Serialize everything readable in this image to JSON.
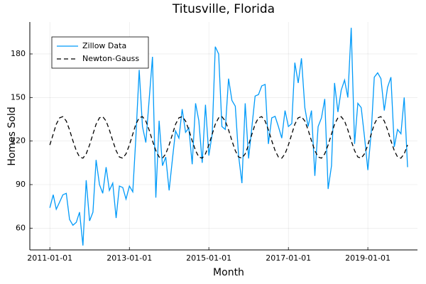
{
  "chart_data": {
    "type": "line",
    "title": "Titusville, Florida",
    "x_label": "Month",
    "y_label": "Homes Sold",
    "x": [
      "2011-01-01",
      "2011-02-01",
      "2011-03-01",
      "2011-04-01",
      "2011-05-01",
      "2011-06-01",
      "2011-07-01",
      "2011-08-01",
      "2011-09-01",
      "2011-10-01",
      "2011-11-01",
      "2011-12-01",
      "2012-01-01",
      "2012-02-01",
      "2012-03-01",
      "2012-04-01",
      "2012-05-01",
      "2012-06-01",
      "2012-07-01",
      "2012-08-01",
      "2012-09-01",
      "2012-10-01",
      "2012-11-01",
      "2012-12-01",
      "2013-01-01",
      "2013-02-01",
      "2013-03-01",
      "2013-04-01",
      "2013-05-01",
      "2013-06-01",
      "2013-07-01",
      "2013-08-01",
      "2013-09-01",
      "2013-10-01",
      "2013-11-01",
      "2013-12-01",
      "2014-01-01",
      "2014-02-01",
      "2014-03-01",
      "2014-04-01",
      "2014-05-01",
      "2014-06-01",
      "2014-07-01",
      "2014-08-01",
      "2014-09-01",
      "2014-10-01",
      "2014-11-01",
      "2014-12-01",
      "2015-01-01",
      "2015-02-01",
      "2015-03-01",
      "2015-04-01",
      "2015-05-01",
      "2015-06-01",
      "2015-07-01",
      "2015-08-01",
      "2015-09-01",
      "2015-10-01",
      "2015-11-01",
      "2015-12-01",
      "2016-01-01",
      "2016-02-01",
      "2016-03-01",
      "2016-04-01",
      "2016-05-01",
      "2016-06-01",
      "2016-07-01",
      "2016-08-01",
      "2016-09-01",
      "2016-10-01",
      "2016-11-01",
      "2016-12-01",
      "2017-01-01",
      "2017-02-01",
      "2017-03-01",
      "2017-04-01",
      "2017-05-01",
      "2017-06-01",
      "2017-07-01",
      "2017-08-01",
      "2017-09-01",
      "2017-10-01",
      "2017-11-01",
      "2017-12-01",
      "2018-01-01",
      "2018-02-01",
      "2018-03-01",
      "2018-04-01",
      "2018-05-01",
      "2018-06-01",
      "2018-07-01",
      "2018-08-01",
      "2018-09-01",
      "2018-10-01",
      "2018-11-01",
      "2018-12-01",
      "2019-01-01",
      "2019-02-01",
      "2019-03-01",
      "2019-04-01",
      "2019-05-01",
      "2019-06-01",
      "2019-07-01",
      "2019-08-01",
      "2019-09-01",
      "2019-10-01",
      "2019-11-01",
      "2019-12-01",
      "2020-01-01"
    ],
    "series": [
      {
        "name": "Zillow Data",
        "color": "#009af9",
        "dash": "solid",
        "values": [
          74,
          83,
          73,
          78,
          83,
          84,
          66,
          62,
          64,
          71,
          48,
          93,
          65,
          71,
          107,
          90,
          84,
          102,
          86,
          91,
          67,
          89,
          88,
          80,
          89,
          85,
          122,
          169,
          130,
          119,
          148,
          178,
          81,
          134,
          103,
          109,
          86,
          108,
          127,
          122,
          142,
          126,
          129,
          104,
          146,
          134,
          105,
          145,
          110,
          125,
          185,
          180,
          130,
          128,
          163,
          148,
          144,
          110,
          91,
          146,
          108,
          130,
          151,
          152,
          158,
          159,
          118,
          136,
          137,
          130,
          122,
          141,
          130,
          132,
          174,
          160,
          177,
          143,
          130,
          141,
          96,
          130,
          136,
          149,
          87,
          103,
          160,
          140,
          155,
          162,
          150,
          198,
          118,
          146,
          143,
          123,
          100,
          126,
          164,
          167,
          163,
          141,
          157,
          164,
          116,
          128,
          125,
          150,
          102
        ]
      },
      {
        "name": "Newton-Gauss",
        "color": "#000000",
        "dash": "dashed",
        "values": [
          117.3,
          124.8,
          131.6,
          136.0,
          136.8,
          133.8,
          127.7,
          120.2,
          113.4,
          109.0,
          108.2,
          111.2,
          117.3,
          124.8,
          131.6,
          136.0,
          136.8,
          133.8,
          127.7,
          120.2,
          113.4,
          109.0,
          108.2,
          111.2,
          117.3,
          124.8,
          131.6,
          136.0,
          136.8,
          133.8,
          127.7,
          120.2,
          113.4,
          109.0,
          108.2,
          111.2,
          117.3,
          124.8,
          131.6,
          136.0,
          136.8,
          133.8,
          127.7,
          120.2,
          113.4,
          109.0,
          108.2,
          111.2,
          117.3,
          124.8,
          131.6,
          136.0,
          136.8,
          133.8,
          127.7,
          120.2,
          113.4,
          109.0,
          108.2,
          111.2,
          117.3,
          124.8,
          131.6,
          136.0,
          136.8,
          133.8,
          127.7,
          120.2,
          113.4,
          109.0,
          108.2,
          111.2,
          117.3,
          124.8,
          131.6,
          136.0,
          136.8,
          133.8,
          127.7,
          120.2,
          113.4,
          109.0,
          108.2,
          111.2,
          117.3,
          124.8,
          131.6,
          136.0,
          136.8,
          133.8,
          127.7,
          120.2,
          113.4,
          109.0,
          108.2,
          111.2,
          117.3,
          124.8,
          131.6,
          136.0,
          136.8,
          133.8,
          127.7,
          120.2,
          113.4,
          109.0,
          108.2,
          111.2,
          117.3
        ]
      }
    ],
    "xlim": [
      "2010-07-01",
      "2020-04-01"
    ],
    "xticks": [
      "2011-01-01",
      "2013-01-01",
      "2015-01-01",
      "2017-01-01",
      "2019-01-01"
    ],
    "ylim": [
      45,
      202
    ],
    "yticks": [
      60,
      90,
      120,
      150,
      180
    ],
    "grid": true,
    "legend": "top-left"
  }
}
